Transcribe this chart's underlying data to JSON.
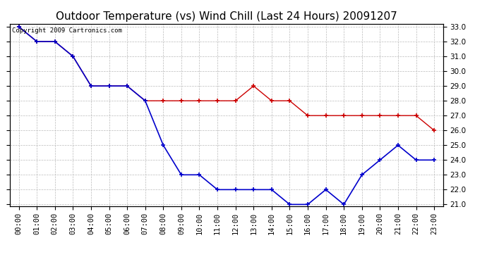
{
  "title": "Outdoor Temperature (vs) Wind Chill (Last 24 Hours) 20091207",
  "copyright_text": "Copyright 2009 Cartronics.com",
  "x_labels": [
    "00:00",
    "01:00",
    "02:00",
    "03:00",
    "04:00",
    "05:00",
    "06:00",
    "07:00",
    "08:00",
    "09:00",
    "10:00",
    "11:00",
    "12:00",
    "13:00",
    "14:00",
    "15:00",
    "16:00",
    "17:00",
    "18:00",
    "19:00",
    "20:00",
    "21:00",
    "22:00",
    "23:00"
  ],
  "temp_red": [
    33.0,
    32.0,
    32.0,
    31.0,
    29.0,
    29.0,
    29.0,
    28.0,
    28.0,
    28.0,
    28.0,
    28.0,
    28.0,
    29.0,
    28.0,
    28.0,
    27.0,
    27.0,
    27.0,
    27.0,
    27.0,
    27.0,
    27.0,
    26.0
  ],
  "wind_chill_blue": [
    33.0,
    32.0,
    32.0,
    31.0,
    29.0,
    29.0,
    29.0,
    28.0,
    25.0,
    23.0,
    23.0,
    22.0,
    22.0,
    22.0,
    22.0,
    21.0,
    21.0,
    22.0,
    21.0,
    23.0,
    24.0,
    25.0,
    24.0,
    24.0
  ],
  "red_color": "#cc0000",
  "blue_color": "#0000cc",
  "bg_color": "#ffffff",
  "grid_color": "#bbbbbb",
  "ylim_min": 21.0,
  "ylim_max": 33.0,
  "ytick_step": 1.0,
  "title_fontsize": 11,
  "copyright_fontsize": 6.5,
  "axis_fontsize": 7.5
}
